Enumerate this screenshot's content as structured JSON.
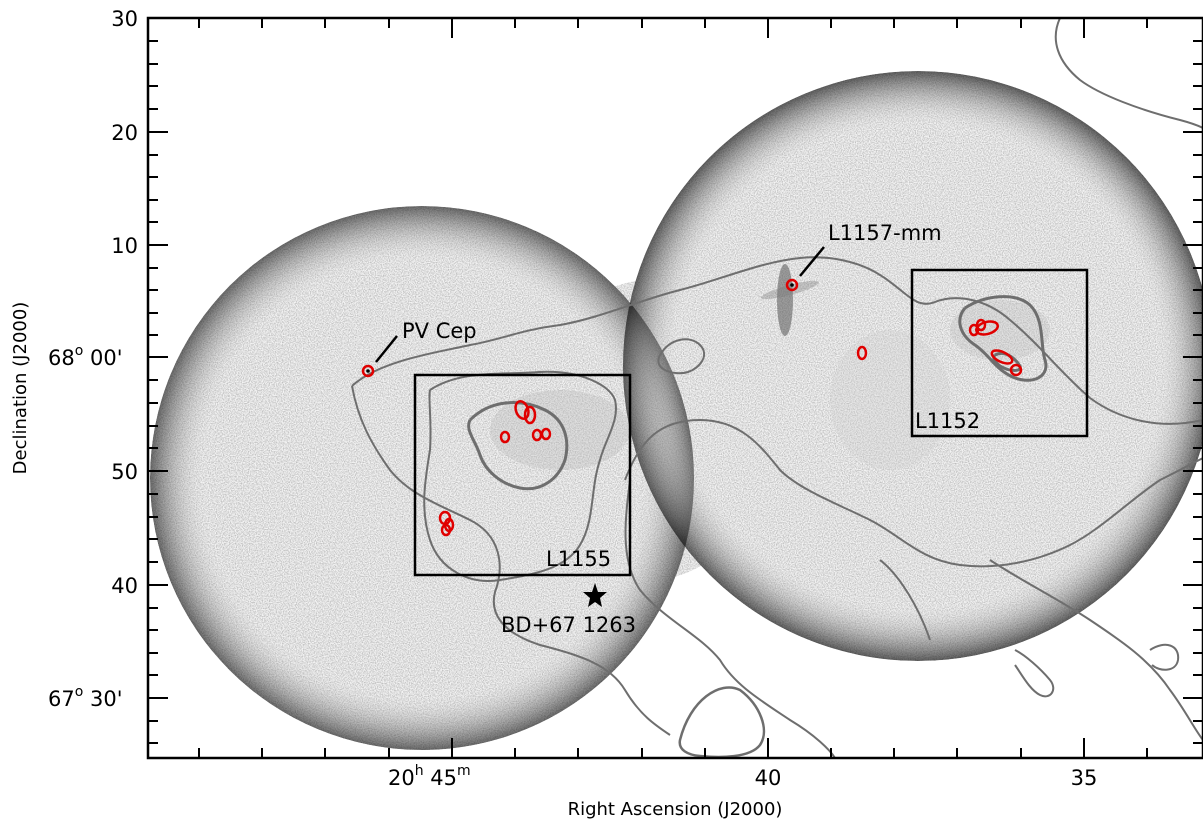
{
  "figure": {
    "xlabel": "Right Ascension (J2000)",
    "ylabel": "Declination (J2000)",
    "x_ticks": [
      {
        "main": "20",
        "sup1": "h",
        "mid": " 45",
        "sup2": "m"
      },
      {
        "main": "40"
      },
      {
        "main": "35"
      }
    ],
    "y_ticks": [
      {
        "main": "30"
      },
      {
        "main": "20"
      },
      {
        "main": "10"
      },
      {
        "main": "68",
        "sup1": "o",
        "tail": " 00'"
      },
      {
        "main": "50"
      },
      {
        "main": "40"
      },
      {
        "main": "67",
        "sup1": "o",
        "tail": " 30'"
      }
    ],
    "annotations": {
      "pv_cep": "PV Cep",
      "l1157mm": "L1157-mm",
      "l1155": "L1155",
      "l1152": "L1152",
      "bd67": "BD+67 1263"
    },
    "colors": {
      "contour": "#6e6e6e",
      "core": "#e00000",
      "box": "#000000"
    }
  }
}
